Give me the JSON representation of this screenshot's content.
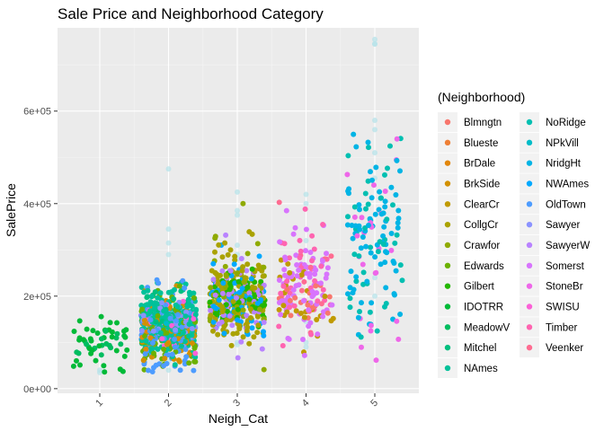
{
  "chart_data": {
    "type": "scatter",
    "title": "Sale Price and Neighborhood Category",
    "xlabel": "Neigh_Cat",
    "ylabel": "SalePrice",
    "x_categories": [
      "1",
      "2",
      "3",
      "4",
      "5"
    ],
    "y_ticks": [
      {
        "value": 0,
        "label": "0e+00"
      },
      {
        "value": 200000,
        "label": "2e+05"
      },
      {
        "value": 400000,
        "label": "4e+05"
      },
      {
        "value": 600000,
        "label": "6e+05"
      }
    ],
    "ylim": [
      -10000,
      780000
    ],
    "x_tick_rotation": "45",
    "jitter": "horizontal",
    "grid": true,
    "legend": {
      "title": "(Neighborhood)",
      "placement": "right",
      "columns": 2
    },
    "series": [
      {
        "name": "Blmngtn",
        "color": "#F8766D",
        "cat": 4,
        "center": 195000,
        "spread": 25000,
        "n": 17
      },
      {
        "name": "Blueste",
        "color": "#EE7F35",
        "cat": 2,
        "center": 140000,
        "spread": 15000,
        "n": 2
      },
      {
        "name": "BrDale",
        "color": "#E2860B",
        "cat": 2,
        "center": 105000,
        "spread": 12000,
        "n": 16
      },
      {
        "name": "BrkSide",
        "color": "#D29000",
        "cat": 2,
        "center": 125000,
        "spread": 35000,
        "n": 58
      },
      {
        "name": "ClearCr",
        "color": "#C09A00",
        "cat": 4,
        "center": 212000,
        "spread": 50000,
        "n": 28
      },
      {
        "name": "CollgCr",
        "color": "#AAA200",
        "cat": 3,
        "center": 197000,
        "spread": 48000,
        "n": 150
      },
      {
        "name": "Crawfor",
        "color": "#8FAA00",
        "cat": 3,
        "center": 210000,
        "spread": 55000,
        "n": 51
      },
      {
        "name": "Edwards",
        "color": "#6BB100",
        "cat": 2,
        "center": 128000,
        "spread": 38000,
        "n": 100
      },
      {
        "name": "Gilbert",
        "color": "#24B700",
        "cat": 3,
        "center": 192000,
        "spread": 30000,
        "n": 79
      },
      {
        "name": "IDOTRR",
        "color": "#00BA38",
        "cat": 1,
        "center": 100000,
        "spread": 30000,
        "n": 37
      },
      {
        "name": "MeadowV",
        "color": "#00BD60",
        "cat": 1,
        "center": 98000,
        "spread": 20000,
        "n": 17
      },
      {
        "name": "Mitchel",
        "color": "#00BF7F",
        "cat": 2,
        "center": 156000,
        "spread": 35000,
        "n": 49
      },
      {
        "name": "NAmes",
        "color": "#00C19A",
        "cat": 2,
        "center": 145000,
        "spread": 33000,
        "n": 225
      },
      {
        "name": "NoRidge",
        "color": "#00BFB1",
        "cat": 5,
        "center": 335000,
        "spread": 120000,
        "n": 41
      },
      {
        "name": "NPkVill",
        "color": "#00BCC8",
        "cat": 2,
        "center": 142000,
        "spread": 10000,
        "n": 9
      },
      {
        "name": "NridgHt",
        "color": "#00B4E5",
        "cat": 5,
        "center": 316000,
        "spread": 96000,
        "n": 77
      },
      {
        "name": "NWAmes",
        "color": "#00A9FF",
        "cat": 3,
        "center": 189000,
        "spread": 37000,
        "n": 73
      },
      {
        "name": "OldTown",
        "color": "#4D9CFF",
        "cat": 2,
        "center": 128000,
        "spread": 52000,
        "n": 113
      },
      {
        "name": "Sawyer",
        "color": "#8B93FF",
        "cat": 2,
        "center": 136000,
        "spread": 22000,
        "n": 74
      },
      {
        "name": "SawyerW",
        "color": "#B983FF",
        "cat": 3,
        "center": 186000,
        "spread": 55000,
        "n": 59
      },
      {
        "name": "Somerst",
        "color": "#D874FD",
        "cat": 4,
        "center": 225000,
        "spread": 56000,
        "n": 86
      },
      {
        "name": "StoneBr",
        "color": "#EE67E9",
        "cat": 5,
        "center": 310000,
        "spread": 112000,
        "n": 25
      },
      {
        "name": "SWISU",
        "color": "#FB61D7",
        "cat": 2,
        "center": 142000,
        "spread": 32000,
        "n": 25
      },
      {
        "name": "Timber",
        "color": "#FF64B0",
        "cat": 4,
        "center": 242000,
        "spread": 64000,
        "n": 38
      },
      {
        "name": "Veenker",
        "color": "#FF6C91",
        "cat": 4,
        "center": 238000,
        "spread": 72000,
        "n": 11
      }
    ],
    "faint_overlay": {
      "color": "#B7E3EA",
      "points": [
        {
          "cat": 5,
          "y": 745000
        },
        {
          "cat": 5,
          "y": 755000
        },
        {
          "cat": 5,
          "y": 745000
        },
        {
          "cat": 5,
          "y": 580000
        },
        {
          "cat": 5,
          "y": 560000
        },
        {
          "cat": 5,
          "y": 510000
        },
        {
          "cat": 5,
          "y": 455000
        },
        {
          "cat": 5,
          "y": 200000
        },
        {
          "cat": 5,
          "y": 240000
        },
        {
          "cat": 4,
          "y": 420000
        },
        {
          "cat": 4,
          "y": 400000
        },
        {
          "cat": 4,
          "y": 320000
        },
        {
          "cat": 4,
          "y": 100000
        },
        {
          "cat": 4,
          "y": 90000
        },
        {
          "cat": 4,
          "y": 145000
        },
        {
          "cat": 3,
          "y": 425000
        },
        {
          "cat": 3,
          "y": 385000
        },
        {
          "cat": 3,
          "y": 375000
        },
        {
          "cat": 3,
          "y": 310000
        },
        {
          "cat": 3,
          "y": 290000
        },
        {
          "cat": 3,
          "y": 95000
        },
        {
          "cat": 3,
          "y": 100000
        },
        {
          "cat": 3,
          "y": 280000
        },
        {
          "cat": 2,
          "y": 475000
        },
        {
          "cat": 2,
          "y": 345000
        },
        {
          "cat": 2,
          "y": 315000
        },
        {
          "cat": 2,
          "y": 290000
        },
        {
          "cat": 2,
          "y": 40000
        },
        {
          "cat": 2,
          "y": 60000
        },
        {
          "cat": 1,
          "y": 40000
        },
        {
          "cat": 1,
          "y": 35000
        }
      ]
    }
  }
}
